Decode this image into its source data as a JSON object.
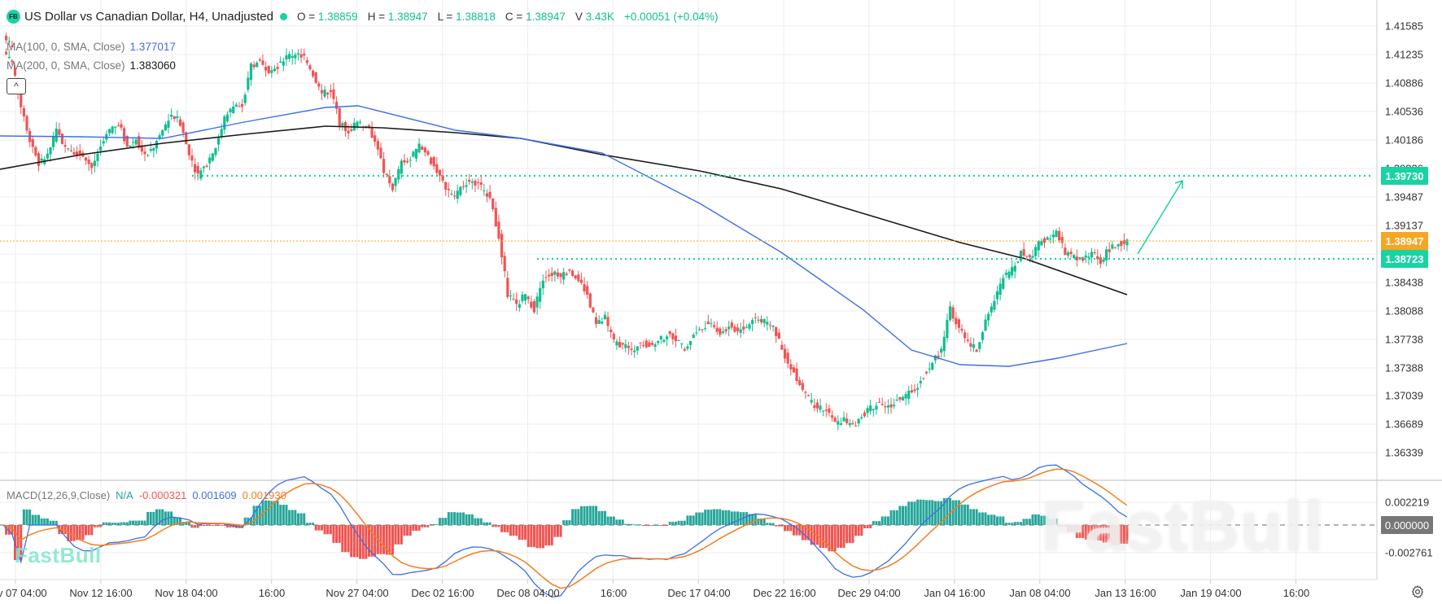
{
  "header": {
    "logo_text": "FB",
    "title": "US Dollar vs Canadian Dollar, H4, Unadjusted",
    "ohlc": [
      {
        "key": "O =",
        "value": "1.38859"
      },
      {
        "key": "H =",
        "value": "1.38947"
      },
      {
        "key": "L =",
        "value": "1.38818"
      },
      {
        "key": "C =",
        "value": "1.38947"
      },
      {
        "key": "V",
        "value": "3.43K"
      }
    ],
    "change": "+0.00051 (+0.04%)"
  },
  "indicators": {
    "ma100": {
      "label": "MA(100, 0, SMA, Close)",
      "value": "1.377017",
      "color": "#3d6fe6"
    },
    "ma200": {
      "label": "MA(200, 0, SMA, Close)",
      "value": "1.383060",
      "color": "#1a1a1a"
    },
    "collapse_icon": "^"
  },
  "macd": {
    "label": "MACD(12,26,9,Close)",
    "na": "N/A",
    "histogram": "-0.000321",
    "macd_line": "0.001609",
    "signal": "0.001930",
    "colors": {
      "na": "#26a69a",
      "histogram": "#ef5350",
      "macd_line": "#3d6fe6",
      "signal": "#f57c1f"
    }
  },
  "price_axis": {
    "ticks": [
      "1.41585",
      "1.41235",
      "1.40886",
      "1.40536",
      "1.40186",
      "1.39836",
      "1.39487",
      "1.39137",
      "1.38438",
      "1.38088",
      "1.37738",
      "1.37388",
      "1.37039",
      "1.36689",
      "1.36339"
    ],
    "tags": [
      {
        "value": "1.39730",
        "color": "#19d3a2"
      },
      {
        "value": "1.38947",
        "color": "#f5a623"
      },
      {
        "value": "1.38723",
        "color": "#19d3a2"
      }
    ]
  },
  "macd_axis": {
    "ticks": [
      "0.002219",
      "-0.002761"
    ],
    "zero_tag": "0.000000"
  },
  "time_axis": {
    "labels": [
      "Nov 07 04:00",
      "Nov 12 16:00",
      "Nov 18 04:00",
      "16:00",
      "Nov 27 04:00",
      "Dec 02 16:00",
      "Dec 08 04:00",
      "16:00",
      "Dec 17 04:00",
      "Dec 22 16:00",
      "Dec 29 04:00",
      "Jan 04 16:00",
      "Jan 08 04:00",
      "Jan 13 16:00",
      "Jan 19 04:00",
      "16:00"
    ]
  },
  "watermark": {
    "text": "FastBull"
  },
  "colors": {
    "up": "#0fbf8f",
    "down": "#f05454",
    "grid": "#ececec",
    "level": "#19d3a2",
    "last_price": "#f5a623"
  },
  "chart_data": {
    "type": "candlestick",
    "title": "US Dollar vs Canadian Dollar, H4, Unadjusted",
    "symbol": "USDCAD",
    "timeframe": "H4",
    "x_ticks": [
      "Nov 07 04:00",
      "Nov 12 16:00",
      "Nov 18 04:00",
      "16:00",
      "Nov 27 04:00",
      "Dec 02 16:00",
      "Dec 08 04:00",
      "16:00",
      "Dec 17 04:00",
      "Dec 22 16:00",
      "Dec 29 04:00",
      "Jan 04 16:00",
      "Jan 08 04:00",
      "Jan 13 16:00",
      "Jan 19 04:00",
      "16:00"
    ],
    "ylim": [
      1.3605,
      1.4185
    ],
    "last": {
      "open": 1.38859,
      "high": 1.38947,
      "low": 1.38818,
      "close": 1.38947,
      "volume": "3.43K",
      "change": 0.00051,
      "change_pct": 0.04
    },
    "close_path": [
      1.413,
      1.411,
      1.406,
      1.402,
      1.399,
      1.4,
      1.403,
      1.401,
      1.4005,
      1.4,
      1.3985,
      1.401,
      1.403,
      1.404,
      1.401,
      1.402,
      1.4,
      1.401,
      1.403,
      1.405,
      1.404,
      1.4,
      1.3975,
      1.399,
      1.401,
      1.4045,
      1.406,
      1.406,
      1.411,
      1.4115,
      1.4105,
      1.411,
      1.412,
      1.4125,
      1.412,
      1.41,
      1.4075,
      1.408,
      1.404,
      1.403,
      1.404,
      1.4035,
      1.402,
      1.398,
      1.396,
      1.399,
      1.3995,
      1.401,
      1.4,
      1.398,
      1.396,
      1.395,
      1.3965,
      1.397,
      1.396,
      1.395,
      1.39,
      1.383,
      1.3815,
      1.383,
      1.381,
      1.385,
      1.3855,
      1.385,
      1.386,
      1.3845,
      1.383,
      1.379,
      1.38,
      1.377,
      1.3765,
      1.376,
      1.377,
      1.3765,
      1.377,
      1.378,
      1.3775,
      1.376,
      1.378,
      1.379,
      1.3795,
      1.378,
      1.379,
      1.3785,
      1.379,
      1.38,
      1.3795,
      1.379,
      1.376,
      1.374,
      1.372,
      1.37,
      1.369,
      1.3685,
      1.367,
      1.3675,
      1.3665,
      1.368,
      1.369,
      1.3695,
      1.369,
      1.37,
      1.3705,
      1.371,
      1.373,
      1.3745,
      1.376,
      1.381,
      1.379,
      1.377,
      1.376,
      1.38,
      1.382,
      1.385,
      1.386,
      1.388,
      1.3875,
      1.389,
      1.39,
      1.3905,
      1.388,
      1.3875,
      1.387,
      1.388,
      1.387,
      1.3885,
      1.389,
      1.38947
    ],
    "series": [
      {
        "name": "MA(100, 0, SMA, Close)",
        "last": 1.377017,
        "color": "#3d6fe6"
      },
      {
        "name": "MA(200, 0, SMA, Close)",
        "last": 1.38306,
        "color": "#1a1a1a"
      }
    ],
    "levels": [
      {
        "name": "resistance_target",
        "value": 1.3973,
        "style": "dotted",
        "color": "#19d3a2"
      },
      {
        "name": "support",
        "value": 1.38723,
        "style": "dotted",
        "color": "#19d3a2"
      },
      {
        "name": "last_price",
        "value": 1.38947,
        "style": "dotted",
        "color": "#f5a623"
      }
    ],
    "annotations": [
      {
        "type": "arrow",
        "from_price": 1.3872,
        "to_price": 1.397,
        "direction": "up",
        "color": "#19d3a2"
      }
    ],
    "macd": {
      "params": "12,26,9,Close",
      "histogram_last": -0.000321,
      "macd_last": 0.001609,
      "signal_last": 0.00193,
      "ylim": [
        -0.004,
        0.003
      ],
      "y_ticks": [
        0.002219,
        0.0,
        -0.002761
      ]
    }
  }
}
